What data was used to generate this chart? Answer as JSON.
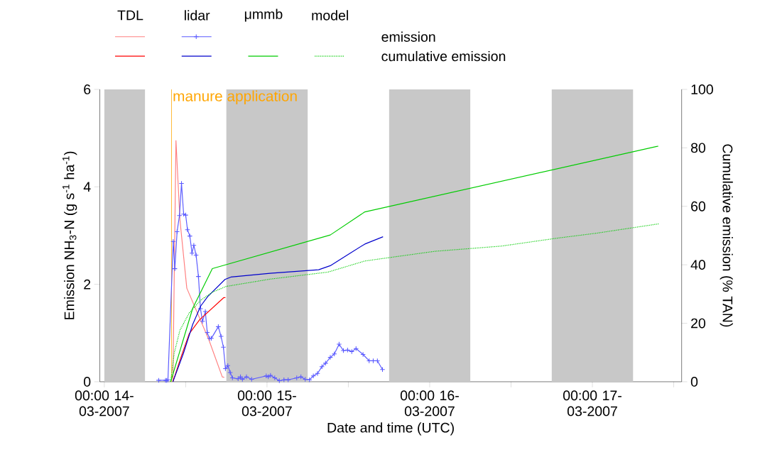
{
  "chart_data": {
    "type": "line",
    "xlabel": "Date and time (UTC)",
    "ylabel": "Emission NH$_{3}$-N (g s$^{-1}$ ha$^{-1}$)",
    "y2label": "Cumulative emission (% TAN)",
    "annotations": [
      "TDL",
      "lidar",
      "μmmb",
      "model",
      "emission",
      "cumulative emission"
    ],
    "legend": "top left",
    "xlim": [
      "2007-03-13T23:20",
      "2007-03-17T13:10"
    ],
    "xticks": [
      {
        "value": "2007-03-14T00:00",
        "label": "00:00 14-03-2007"
      },
      {
        "value": "2007-03-14T12:00",
        "label": null
      },
      {
        "value": "2007-03-15T00:00",
        "label": "00:00 15-03-2007"
      },
      {
        "value": "2007-03-15T12:00",
        "label": null
      },
      {
        "value": "2007-03-16T00:00",
        "label": "00:00 16-03-2007"
      },
      {
        "value": "2007-03-16T12:00",
        "label": null
      },
      {
        "value": "2007-03-17T00:00",
        "label": "00:00 17-03-2007"
      },
      {
        "value": "2007-03-17T12:00",
        "label": null
      }
    ],
    "ylim": [
      0,
      6
    ],
    "yticks": [
      0,
      2,
      4,
      6
    ],
    "y2lim": [
      0,
      100
    ],
    "y2ticks": [
      0,
      20,
      40,
      60,
      80,
      100
    ],
    "bands": [
      {
        "axis": "x",
        "from": "2007-03-14T00:00",
        "to": "2007-03-14T06:00",
        "color": "#c8c8c8"
      },
      {
        "axis": "x",
        "from": "2007-03-14T18:00",
        "to": "2007-03-15T06:00",
        "color": "#c8c8c8"
      },
      {
        "axis": "x",
        "from": "2007-03-15T18:00",
        "to": "2007-03-16T06:00",
        "color": "#c8c8c8"
      },
      {
        "axis": "x",
        "from": "2007-03-16T18:00",
        "to": "2007-03-17T06:00",
        "color": "#c8c8c8"
      }
    ],
    "ref_lines": [
      {
        "axis": "x",
        "value": "2007-03-14T09:55",
        "label": "manure application",
        "color": "#ffa500"
      }
    ],
    "series": [
      {
        "color": "#ff8080",
        "x": [
          "2007-03-14T10:07",
          "2007-03-14T10:34",
          "2007-03-14T11:09",
          "2007-03-14T12:10",
          "2007-03-14T15:24",
          "2007-03-14T17:24",
          "2007-03-14T17:42"
        ],
        "values": [
          0.0,
          4.95,
          3.33,
          1.92,
          0.87,
          0.1,
          0.09
        ]
      },
      {
        "color": "#ff0000",
        "axis": "y2",
        "x": [
          "2007-03-14T10:07",
          "2007-03-14T11:09",
          "2007-03-14T12:31",
          "2007-03-14T14:03",
          "2007-03-14T17:38",
          "2007-03-14T17:52"
        ],
        "values": [
          0,
          7.3,
          16.4,
          21.2,
          28.8,
          28.8
        ]
      },
      {
        "color": "#5a5aff",
        "marker": "cross",
        "x": [
          "2007-03-14T08:01",
          "2007-03-14T09:02",
          "2007-03-14T09:12",
          "2007-03-14T09:23",
          "2007-03-14T10:10",
          "2007-03-14T10:24",
          "2007-03-14T10:44",
          "2007-03-14T11:05",
          "2007-03-14T11:23",
          "2007-03-14T11:42",
          "2007-03-14T12:00",
          "2007-03-14T12:16",
          "2007-03-14T12:37",
          "2007-03-14T12:56",
          "2007-03-14T13:12",
          "2007-03-14T13:32",
          "2007-03-14T13:53",
          "2007-03-14T14:11",
          "2007-03-14T14:29",
          "2007-03-14T14:54",
          "2007-03-14T15:11",
          "2007-03-14T15:31",
          "2007-03-14T15:47",
          "2007-03-14T16:49",
          "2007-03-14T17:13",
          "2007-03-14T17:34",
          "2007-03-14T17:52",
          "2007-03-14T18:13",
          "2007-03-14T18:34",
          "2007-03-14T18:54",
          "2007-03-14T19:44",
          "2007-03-14T20:05",
          "2007-03-14T20:22",
          "2007-03-14T20:58",
          "2007-03-14T21:44",
          "2007-03-14T23:53",
          "2007-03-15T00:11",
          "2007-03-15T00:31",
          "2007-03-15T01:08",
          "2007-03-15T01:49",
          "2007-03-15T02:30",
          "2007-03-15T03:07",
          "2007-03-15T04:23",
          "2007-03-15T05:00",
          "2007-03-15T05:38",
          "2007-03-15T06:16",
          "2007-03-15T06:50",
          "2007-03-15T07:27",
          "2007-03-15T08:06",
          "2007-03-15T08:38",
          "2007-03-15T09:20",
          "2007-03-15T09:56",
          "2007-03-15T10:38",
          "2007-03-15T11:16",
          "2007-03-15T11:53",
          "2007-03-15T12:30",
          "2007-03-15T13:08",
          "2007-03-15T14:10",
          "2007-03-15T15:04",
          "2007-03-15T15:40",
          "2007-03-15T16:17",
          "2007-03-15T17:02"
        ],
        "values": [
          0.03,
          0.03,
          0.03,
          0.04,
          2.88,
          2.32,
          3.08,
          3.41,
          4.07,
          3.44,
          3.42,
          3.12,
          2.99,
          2.64,
          2.8,
          2.6,
          2.16,
          1.5,
          1.24,
          1.44,
          1.01,
          0.89,
          0.89,
          1.13,
          0.93,
          0.71,
          0.27,
          0.33,
          0.19,
          0.08,
          0.06,
          0.1,
          0.05,
          0.1,
          0.05,
          0.12,
          0.1,
          0.13,
          0.08,
          0.02,
          0.04,
          0.04,
          0.08,
          0.1,
          0.05,
          0.04,
          0.12,
          0.17,
          0.31,
          0.38,
          0.5,
          0.57,
          0.77,
          0.64,
          0.65,
          0.62,
          0.68,
          0.56,
          0.43,
          0.43,
          0.43,
          0.25
        ]
      },
      {
        "color": "#0000cc",
        "axis": "y2",
        "x": [
          "2007-03-14T10:07",
          "2007-03-14T11:40",
          "2007-03-14T13:02",
          "2007-03-14T14:13",
          "2007-03-14T15:14",
          "2007-03-14T17:48",
          "2007-03-14T18:40",
          "2007-03-15T00:27",
          "2007-03-15T07:37",
          "2007-03-15T09:20",
          "2007-03-15T12:04",
          "2007-03-15T14:26",
          "2007-03-15T17:07"
        ],
        "values": [
          0,
          9.7,
          19.6,
          25.9,
          29.1,
          35.0,
          35.8,
          37.1,
          38.3,
          39.7,
          43.7,
          47.1,
          49.6
        ]
      },
      {
        "color": "#00cc00",
        "axis": "y2",
        "x": [
          "2007-03-14T09:47",
          "2007-03-14T13:02",
          "2007-03-14T15:56",
          "2007-03-15T09:20",
          "2007-03-15T14:26",
          "2007-03-17T09:43"
        ],
        "values": [
          0,
          25.1,
          38.7,
          50.2,
          58.1,
          80.6
        ]
      },
      {
        "color": "#00cc00",
        "axis": "y2",
        "line_style": "dotted",
        "x": [
          "2007-03-14T09:47",
          "2007-03-14T10:18",
          "2007-03-14T11:09",
          "2007-03-14T12:31",
          "2007-03-14T14:13",
          "2007-03-14T15:56",
          "2007-03-14T17:58",
          "2007-03-15T00:27",
          "2007-03-15T08:59",
          "2007-03-15T14:26",
          "2007-03-16T00:41",
          "2007-03-16T10:35",
          "2007-03-16T18:46",
          "2007-03-17T00:34",
          "2007-03-17T09:46"
        ],
        "values": [
          0,
          9.7,
          17.6,
          23.5,
          27.9,
          30.6,
          32.6,
          35.1,
          37.5,
          41.3,
          44.6,
          46.4,
          49.1,
          50.8,
          54.0
        ]
      }
    ]
  }
}
